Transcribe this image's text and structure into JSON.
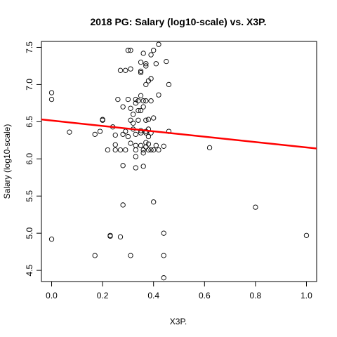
{
  "chart_data": {
    "type": "scatter",
    "title": "2018 PG: Salary (log10-scale) vs. X3P.",
    "xlabel": "X3P.",
    "ylabel": "Salary (log10-scale)",
    "xlim": [
      -0.04,
      1.04
    ],
    "ylim": [
      4.35,
      7.58
    ],
    "x_ticks": [
      "0.0",
      "0.2",
      "0.4",
      "0.6",
      "0.8",
      "1.0"
    ],
    "y_ticks": [
      "4.5",
      "5.0",
      "5.5",
      "6.0",
      "6.5",
      "7.0",
      "7.5"
    ],
    "grid": false,
    "legend": "none",
    "point_color": "#000000",
    "fit_line": {
      "color": "#ff0000",
      "x": [
        -0.04,
        1.04
      ],
      "y": [
        6.53,
        6.14
      ]
    },
    "points": [
      {
        "x": 0.0,
        "y": 6.89
      },
      {
        "x": 0.0,
        "y": 6.8
      },
      {
        "x": 0.0,
        "y": 4.92
      },
      {
        "x": 0.07,
        "y": 6.36
      },
      {
        "x": 0.17,
        "y": 6.33
      },
      {
        "x": 0.17,
        "y": 4.7
      },
      {
        "x": 0.19,
        "y": 6.37
      },
      {
        "x": 0.2,
        "y": 6.53
      },
      {
        "x": 0.2,
        "y": 6.52
      },
      {
        "x": 0.22,
        "y": 6.12
      },
      {
        "x": 0.23,
        "y": 4.96
      },
      {
        "x": 0.23,
        "y": 4.97
      },
      {
        "x": 0.24,
        "y": 6.43
      },
      {
        "x": 0.25,
        "y": 6.32
      },
      {
        "x": 0.25,
        "y": 6.19
      },
      {
        "x": 0.25,
        "y": 6.12
      },
      {
        "x": 0.26,
        "y": 6.8
      },
      {
        "x": 0.27,
        "y": 6.12
      },
      {
        "x": 0.27,
        "y": 4.95
      },
      {
        "x": 0.27,
        "y": 7.19
      },
      {
        "x": 0.28,
        "y": 6.7
      },
      {
        "x": 0.28,
        "y": 5.91
      },
      {
        "x": 0.28,
        "y": 5.38
      },
      {
        "x": 0.28,
        "y": 6.33
      },
      {
        "x": 0.29,
        "y": 6.12
      },
      {
        "x": 0.29,
        "y": 7.19
      },
      {
        "x": 0.29,
        "y": 6.37
      },
      {
        "x": 0.3,
        "y": 7.46
      },
      {
        "x": 0.3,
        "y": 6.8
      },
      {
        "x": 0.3,
        "y": 6.3
      },
      {
        "x": 0.31,
        "y": 6.68
      },
      {
        "x": 0.31,
        "y": 7.46
      },
      {
        "x": 0.31,
        "y": 7.21
      },
      {
        "x": 0.31,
        "y": 6.52
      },
      {
        "x": 0.31,
        "y": 6.21
      },
      {
        "x": 0.31,
        "y": 4.7
      },
      {
        "x": 0.32,
        "y": 6.6
      },
      {
        "x": 0.32,
        "y": 6.48
      },
      {
        "x": 0.32,
        "y": 6.4
      },
      {
        "x": 0.33,
        "y": 6.8
      },
      {
        "x": 0.33,
        "y": 6.75
      },
      {
        "x": 0.33,
        "y": 6.33
      },
      {
        "x": 0.33,
        "y": 6.18
      },
      {
        "x": 0.33,
        "y": 6.12
      },
      {
        "x": 0.33,
        "y": 6.03
      },
      {
        "x": 0.33,
        "y": 5.88
      },
      {
        "x": 0.34,
        "y": 6.78
      },
      {
        "x": 0.34,
        "y": 6.65
      },
      {
        "x": 0.34,
        "y": 6.52
      },
      {
        "x": 0.35,
        "y": 7.3
      },
      {
        "x": 0.35,
        "y": 7.16
      },
      {
        "x": 0.35,
        "y": 7.18
      },
      {
        "x": 0.35,
        "y": 6.85
      },
      {
        "x": 0.35,
        "y": 6.65
      },
      {
        "x": 0.35,
        "y": 6.38
      },
      {
        "x": 0.35,
        "y": 6.35
      },
      {
        "x": 0.35,
        "y": 6.18
      },
      {
        "x": 0.36,
        "y": 7.42
      },
      {
        "x": 0.36,
        "y": 6.78
      },
      {
        "x": 0.36,
        "y": 6.7
      },
      {
        "x": 0.36,
        "y": 6.12
      },
      {
        "x": 0.36,
        "y": 6.08
      },
      {
        "x": 0.36,
        "y": 5.9
      },
      {
        "x": 0.37,
        "y": 7.28
      },
      {
        "x": 0.37,
        "y": 7.25
      },
      {
        "x": 0.37,
        "y": 7.0
      },
      {
        "x": 0.37,
        "y": 6.78
      },
      {
        "x": 0.37,
        "y": 6.52
      },
      {
        "x": 0.37,
        "y": 6.37
      },
      {
        "x": 0.37,
        "y": 6.35
      },
      {
        "x": 0.37,
        "y": 6.22
      },
      {
        "x": 0.37,
        "y": 6.16
      },
      {
        "x": 0.38,
        "y": 7.05
      },
      {
        "x": 0.38,
        "y": 6.53
      },
      {
        "x": 0.38,
        "y": 6.4
      },
      {
        "x": 0.38,
        "y": 6.3
      },
      {
        "x": 0.38,
        "y": 6.2
      },
      {
        "x": 0.38,
        "y": 6.12
      },
      {
        "x": 0.39,
        "y": 7.4
      },
      {
        "x": 0.39,
        "y": 7.08
      },
      {
        "x": 0.39,
        "y": 6.78
      },
      {
        "x": 0.39,
        "y": 6.35
      },
      {
        "x": 0.39,
        "y": 6.12
      },
      {
        "x": 0.4,
        "y": 7.46
      },
      {
        "x": 0.4,
        "y": 6.55
      },
      {
        "x": 0.4,
        "y": 6.12
      },
      {
        "x": 0.4,
        "y": 5.42
      },
      {
        "x": 0.41,
        "y": 7.28
      },
      {
        "x": 0.41,
        "y": 6.18
      },
      {
        "x": 0.42,
        "y": 7.54
      },
      {
        "x": 0.42,
        "y": 6.86
      },
      {
        "x": 0.42,
        "y": 6.12
      },
      {
        "x": 0.44,
        "y": 6.17
      },
      {
        "x": 0.44,
        "y": 5.0
      },
      {
        "x": 0.44,
        "y": 4.7
      },
      {
        "x": 0.44,
        "y": 4.4
      },
      {
        "x": 0.45,
        "y": 7.31
      },
      {
        "x": 0.46,
        "y": 7.0
      },
      {
        "x": 0.46,
        "y": 6.37
      },
      {
        "x": 0.62,
        "y": 6.15
      },
      {
        "x": 0.8,
        "y": 5.35
      },
      {
        "x": 1.0,
        "y": 4.97
      }
    ]
  }
}
